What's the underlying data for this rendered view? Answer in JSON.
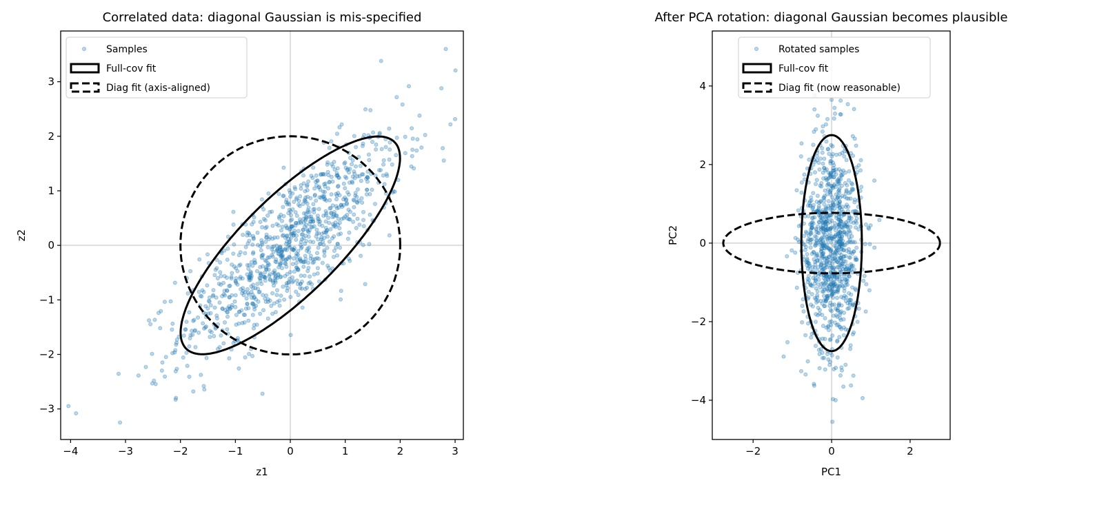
{
  "chart_data": [
    {
      "type": "scatter",
      "title": "Correlated data: diagonal Gaussian is mis-specified",
      "xlabel": "z1",
      "ylabel": "z2",
      "xlim": [
        -4.18,
        3.15
      ],
      "ylim": [
        -3.56,
        3.93
      ],
      "xticks": [
        -4,
        -3,
        -2,
        -1,
        0,
        1,
        2,
        3
      ],
      "yticks": [
        -3,
        -2,
        -1,
        0,
        1,
        2,
        3
      ],
      "grid": false,
      "reference_lines": {
        "x": 0,
        "y": 0
      },
      "series": [
        {
          "name": "Samples",
          "kind": "points",
          "n": 1000,
          "mean": [
            0,
            0
          ],
          "std": [
            1.0,
            1.0
          ],
          "correlation": 0.8,
          "color": "#1f77b4",
          "alpha": 0.3
        },
        {
          "name": "Full-cov fit",
          "kind": "ellipse",
          "center": [
            0,
            0
          ],
          "semi_axes": [
            2.68,
            0.89
          ],
          "angle_deg": 45,
          "style": "solid"
        },
        {
          "name": "Diag fit (axis-aligned)",
          "kind": "ellipse",
          "center": [
            0,
            0
          ],
          "semi_axes": [
            2.0,
            2.0
          ],
          "angle_deg": 0,
          "style": "dashed"
        }
      ],
      "legend": {
        "placement": "top-left",
        "entries": [
          "Samples",
          "Full-cov fit",
          "Diag fit (axis-aligned)"
        ]
      },
      "outliers": [
        [
          -3.9,
          -3.08
        ],
        [
          -3.1,
          -3.25
        ],
        [
          2.83,
          3.6
        ],
        [
          2.75,
          2.88
        ]
      ]
    },
    {
      "type": "scatter",
      "title": "After PCA rotation: diagonal Gaussian becomes plausible",
      "xlabel": "PC1",
      "ylabel": "PC2",
      "xlim": [
        -3.04,
        3.02
      ],
      "ylim": [
        -5.0,
        5.4
      ],
      "xticks": [
        -2,
        0,
        2
      ],
      "yticks": [
        -4,
        -2,
        0,
        2,
        4
      ],
      "grid": false,
      "reference_lines": {
        "x": 0,
        "y": 0
      },
      "series": [
        {
          "name": "Rotated samples",
          "kind": "points",
          "n": 1000,
          "mean": [
            0,
            0
          ],
          "std": [
            0.38,
            1.37
          ],
          "correlation": 0,
          "color": "#1f77b4",
          "alpha": 0.3
        },
        {
          "name": "Full-cov fit",
          "kind": "ellipse",
          "center": [
            0,
            0
          ],
          "semi_axes": [
            0.77,
            2.75
          ],
          "angle_deg": 0,
          "style": "solid"
        },
        {
          "name": "Diag fit (now reasonable)",
          "kind": "ellipse",
          "center": [
            0,
            0
          ],
          "semi_axes": [
            2.76,
            0.77
          ],
          "angle_deg": 0,
          "style": "dashed"
        }
      ],
      "legend": {
        "placement": "top-center",
        "entries": [
          "Rotated samples",
          "Full-cov fit",
          "Diag fit (now reasonable)"
        ]
      },
      "outliers": [
        [
          0.02,
          -4.55
        ],
        [
          0.1,
          -4.0
        ],
        [
          0.0,
          3.65
        ]
      ]
    }
  ]
}
